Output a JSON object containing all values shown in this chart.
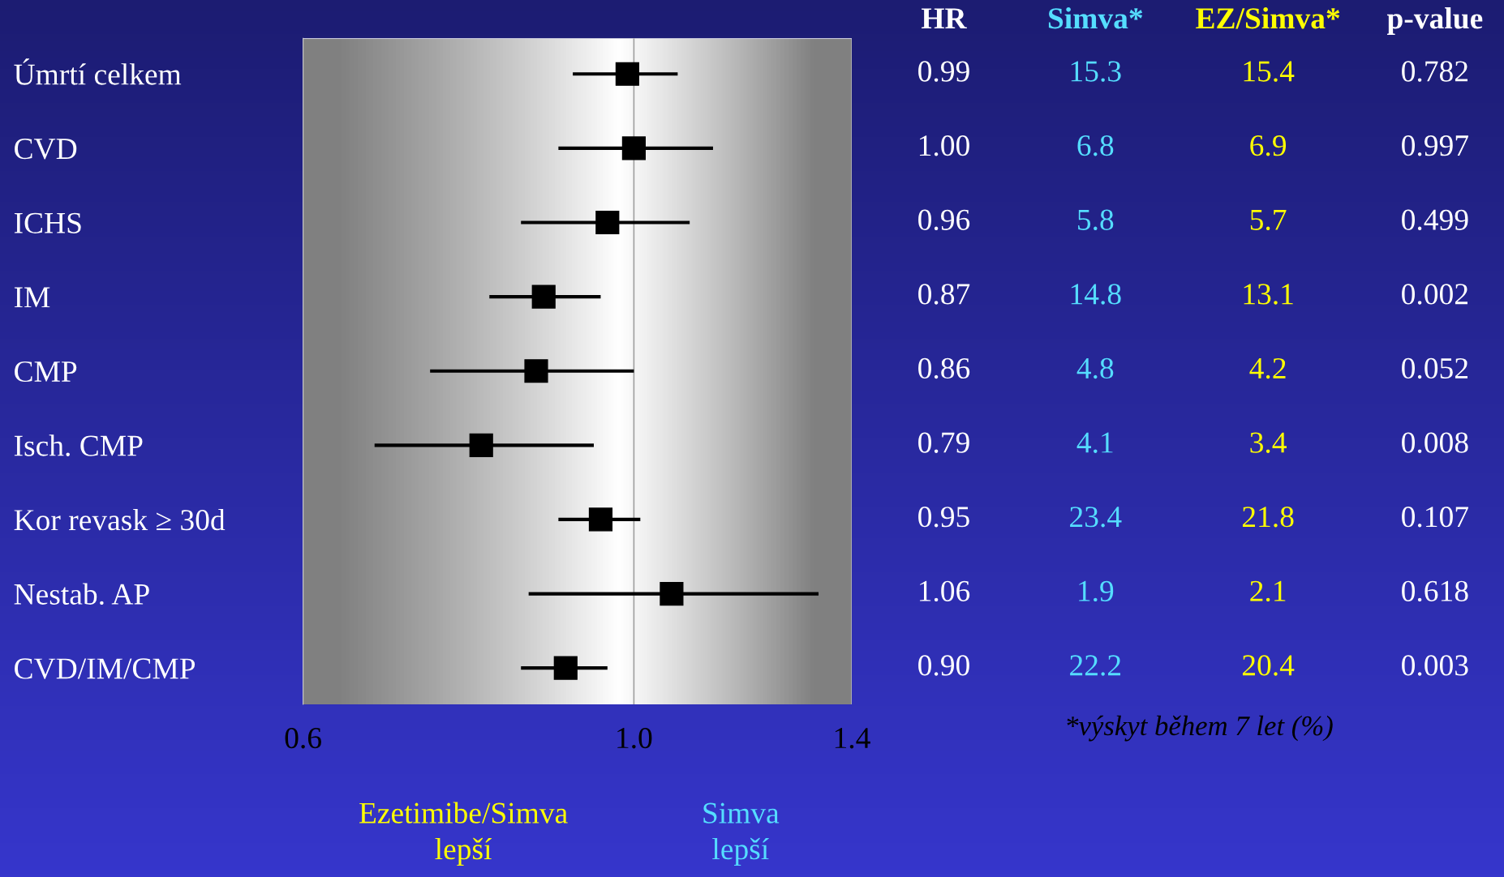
{
  "chart_data": {
    "type": "scatter",
    "orientation": "horizontal",
    "log": "x",
    "categories": [
      "Úmrtí celkem",
      "CVD",
      "ICHS",
      "IM",
      "CMP",
      "Isch. CMP",
      "Kor revask ≥ 30d",
      "Nestab. AP",
      "CVD/IM/CMP"
    ],
    "values": [
      0.99,
      1.0,
      0.96,
      0.87,
      0.86,
      0.79,
      0.95,
      1.06,
      0.9
    ],
    "errors": [
      [
        0.91,
        1.07
      ],
      [
        0.89,
        1.13
      ],
      [
        0.84,
        1.09
      ],
      [
        0.8,
        0.95
      ],
      [
        0.73,
        1.0
      ],
      [
        0.67,
        0.94
      ],
      [
        0.89,
        1.01
      ],
      [
        0.85,
        1.33
      ],
      [
        0.84,
        0.96
      ]
    ],
    "value_labels": [
      "0.99",
      "1.00",
      "0.96",
      "0.87",
      "0.86",
      "0.79",
      "0.95",
      "1.06",
      "0.90"
    ],
    "color": "#000000",
    "marker": "square",
    "grid": false,
    "xlim": [
      0.6,
      1.4
    ],
    "xticks": [
      0.6,
      {
        "value": 1,
        "label": "1.0"
      },
      1.4
    ],
    "ref_lines": [
      {
        "axis": "x",
        "value": 1,
        "color": "#a0a0a0"
      }
    ],
    "annotations": [
      "HR",
      "Simva*",
      "EZ/Simva*",
      "p-value",
      "15.3",
      "15.4",
      "0.782",
      "6.8",
      "6.9",
      "0.997",
      "5.8",
      "5.7",
      "0.499",
      "14.8",
      "13.1",
      "0.002",
      "4.8",
      "4.2",
      "0.052",
      "4.1",
      "3.4",
      "0.008",
      "23.4",
      "21.8",
      "0.107",
      "1.9",
      "2.1",
      "0.618",
      "22.2",
      "20.4",
      "0.003",
      "*výskyt během 7 let (%)",
      "Ezetimibe/Simva\nlepší",
      "Simva\nlepší"
    ]
  }
}
